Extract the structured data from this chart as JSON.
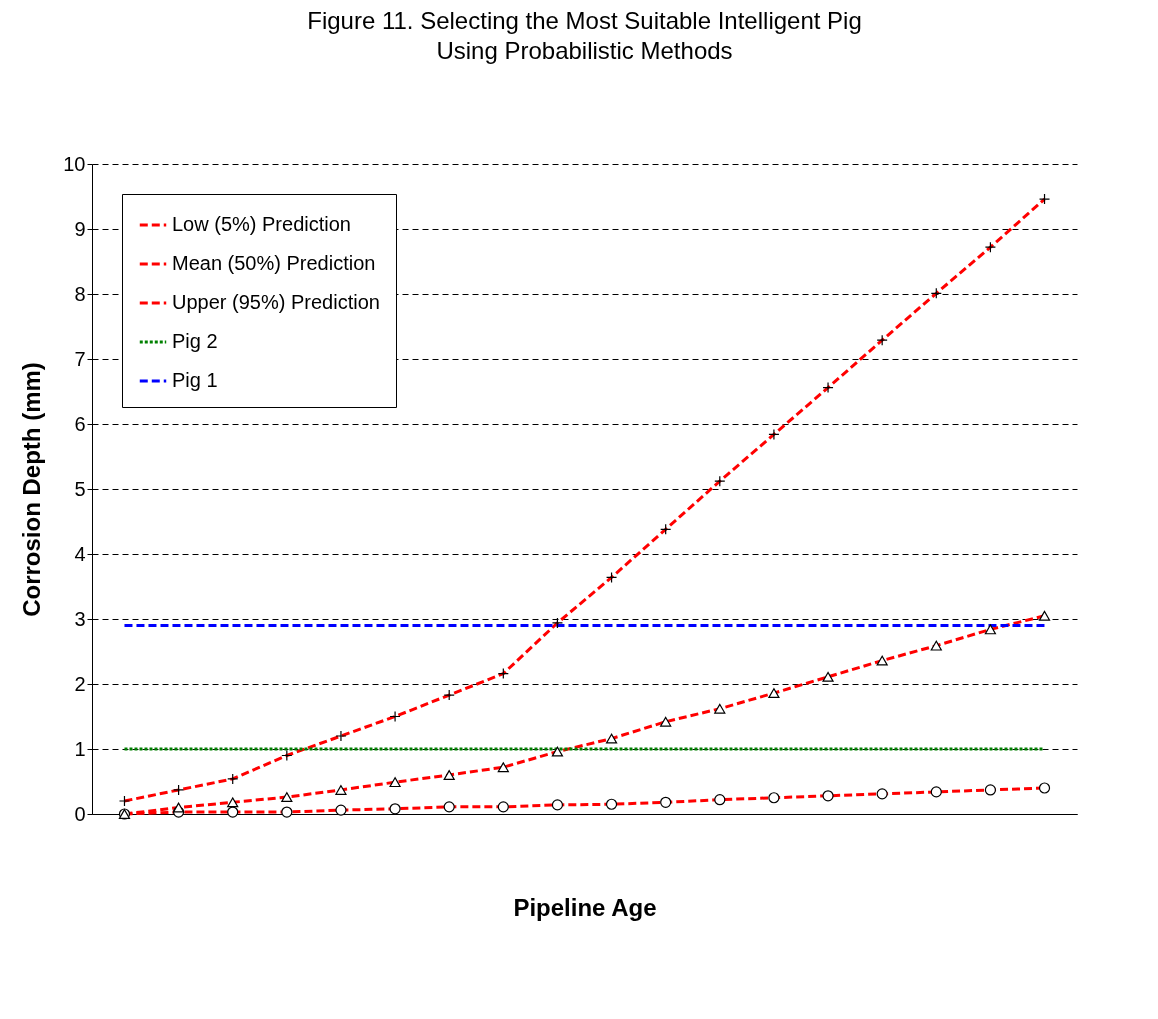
{
  "chart_data": {
    "type": "line",
    "title": "Figure 11. Selecting the Most Suitable Intelligent Pig Using Probabilistic Methods",
    "xlabel": "Pipeline Age",
    "ylabel": "Corrosion Depth (mm)",
    "categories": [
      null,
      null,
      null,
      null,
      null,
      null,
      null,
      null,
      null,
      null,
      null,
      null,
      null,
      null,
      null,
      null,
      null,
      null
    ],
    "series": [
      {
        "name": "Low (5%) Prediction",
        "color": "#ff0000",
        "marker": "circle",
        "line_style": "dashed",
        "values": [
          0,
          0.03,
          0.03,
          0.03,
          0.06,
          0.08,
          0.11,
          0.11,
          0.14,
          0.15,
          0.18,
          0.22,
          0.25,
          0.28,
          0.31,
          0.34,
          0.37,
          0.4
        ]
      },
      {
        "name": "Mean (50%) Prediction",
        "color": "#ff0000",
        "marker": "triangle",
        "line_style": "dashed",
        "values": [
          0,
          0.1,
          0.18,
          0.26,
          0.37,
          0.49,
          0.6,
          0.72,
          0.96,
          1.16,
          1.42,
          1.62,
          1.86,
          2.11,
          2.36,
          2.59,
          2.84,
          3.05
        ]
      },
      {
        "name": "Upper (95%) Prediction",
        "color": "#ff0000",
        "marker": "cross",
        "line_style": "dashed",
        "values": [
          0.2,
          0.37,
          0.54,
          0.9,
          1.2,
          1.5,
          1.83,
          2.16,
          2.94,
          3.64,
          4.38,
          5.12,
          5.84,
          6.56,
          7.29,
          8.01,
          8.72,
          9.46
        ]
      },
      {
        "name": "Pig 2",
        "color": "#008000",
        "marker": "none",
        "line_style": "dotted",
        "values": [
          1,
          1,
          1,
          1,
          1,
          1,
          1,
          1,
          1,
          1,
          1,
          1,
          1,
          1,
          1,
          1,
          1,
          1
        ]
      },
      {
        "name": "Pig 1",
        "color": "#0000ff",
        "marker": "none",
        "line_style": "dashed",
        "values": [
          2.9,
          2.9,
          2.9,
          2.9,
          2.9,
          2.9,
          2.9,
          2.9,
          2.9,
          2.9,
          2.9,
          2.9,
          2.9,
          2.9,
          2.9,
          2.9,
          2.9,
          2.9
        ]
      }
    ],
    "ylim": [
      0,
      10
    ],
    "yticks": [
      0,
      1,
      2,
      3,
      4,
      5,
      6,
      7,
      8,
      9,
      10
    ],
    "grid": "y",
    "legend": "top left"
  }
}
